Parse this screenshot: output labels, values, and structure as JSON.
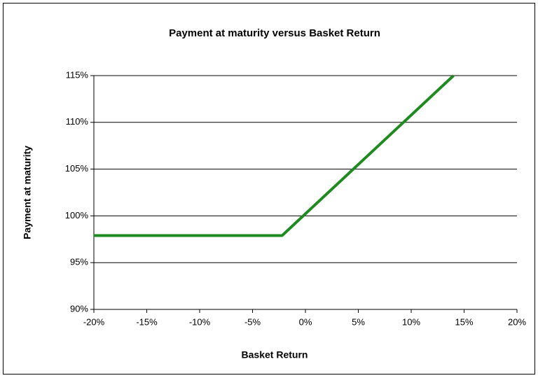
{
  "chart_data": {
    "type": "line",
    "title": "Payment at maturity versus Basket Return",
    "xlabel": "Basket Return",
    "ylabel": "Payment at maturity",
    "x": [
      -20,
      -2.2,
      14
    ],
    "series": [
      {
        "name": "Payment at maturity",
        "color": "#1f8a1f",
        "values": [
          97.9,
          97.9,
          115
        ]
      }
    ],
    "xlim": [
      -20,
      20
    ],
    "xticks": [
      {
        "value": -20,
        "label": "-20%"
      },
      {
        "value": -15,
        "label": "-15%"
      },
      {
        "value": -10,
        "label": "-10%"
      },
      {
        "value": -5,
        "label": "-5%"
      },
      {
        "value": 0,
        "label": "0%"
      },
      {
        "value": 5,
        "label": "5%"
      },
      {
        "value": 10,
        "label": "10%"
      },
      {
        "value": 15,
        "label": "15%"
      },
      {
        "value": 20,
        "label": "20%"
      }
    ],
    "ylim": [
      90,
      115
    ],
    "yticks": [
      {
        "value": 90,
        "label": "90%"
      },
      {
        "value": 95,
        "label": "95%"
      },
      {
        "value": 100,
        "label": "100%"
      },
      {
        "value": 105,
        "label": "105%"
      },
      {
        "value": 110,
        "label": "110%"
      },
      {
        "value": 115,
        "label": "115%"
      }
    ],
    "grid": true
  }
}
